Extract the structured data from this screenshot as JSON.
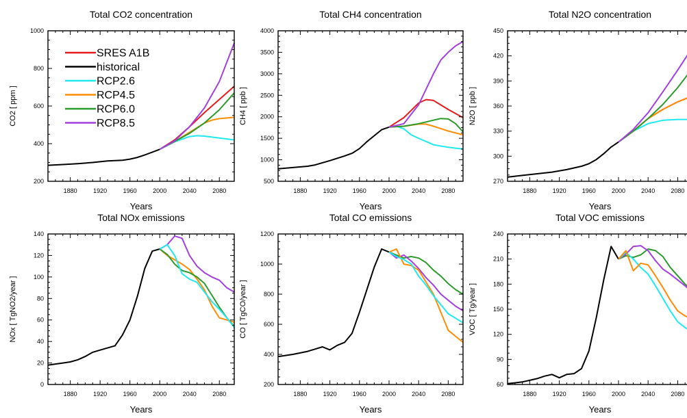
{
  "series_colors": {
    "SRES A1B": "#e41a1c",
    "historical": "#000000",
    "RCP2.6": "#1ee9f0",
    "RCP4.5": "#ff8c00",
    "RCP6.0": "#2a9a2a",
    "RCP8.5": "#a23fe0"
  },
  "legend": [
    "SRES A1B",
    "historical",
    "RCP2.6",
    "RCP4.5",
    "RCP6.0",
    "RCP8.5"
  ],
  "chart_data": [
    {
      "type": "line",
      "title": "Total CO2 concentration",
      "xlabel": "Years",
      "ylabel": "CO2 [ ppm ]",
      "xlim": [
        1850,
        2100
      ],
      "ylim": [
        200,
        1000
      ],
      "xticks": [
        "1880",
        "1920",
        "1960",
        "2000",
        "2040",
        "2080"
      ],
      "yticks": [
        "200",
        "400",
        "600",
        "800",
        "1000"
      ],
      "series": [
        {
          "name": "historical",
          "x": [
            1850,
            1870,
            1890,
            1910,
            1930,
            1950,
            1960,
            1970,
            1980,
            1990,
            2000
          ],
          "y": [
            285,
            289,
            294,
            300,
            308,
            312,
            318,
            327,
            340,
            355,
            370
          ]
        },
        {
          "name": "SRES A1B",
          "x": [
            2000,
            2020,
            2040,
            2060,
            2080,
            2100
          ],
          "y": [
            370,
            420,
            490,
            565,
            635,
            705
          ]
        },
        {
          "name": "RCP2.6",
          "x": [
            2000,
            2020,
            2040,
            2050,
            2060,
            2080,
            2100
          ],
          "y": [
            370,
            410,
            438,
            442,
            440,
            430,
            420
          ]
        },
        {
          "name": "RCP4.5",
          "x": [
            2000,
            2020,
            2040,
            2060,
            2070,
            2080,
            2100
          ],
          "y": [
            370,
            412,
            460,
            510,
            525,
            533,
            540
          ]
        },
        {
          "name": "RCP6.0",
          "x": [
            2000,
            2020,
            2040,
            2060,
            2080,
            2100
          ],
          "y": [
            370,
            412,
            455,
            510,
            580,
            670
          ]
        },
        {
          "name": "RCP8.5",
          "x": [
            2000,
            2020,
            2040,
            2060,
            2080,
            2100
          ],
          "y": [
            370,
            415,
            490,
            590,
            730,
            935
          ]
        }
      ]
    },
    {
      "type": "line",
      "title": "Total CH4 concentration",
      "xlabel": "Years",
      "ylabel": "CH4 [ ppb ]",
      "xlim": [
        1850,
        2100
      ],
      "ylim": [
        500,
        4000
      ],
      "xticks": [
        "1880",
        "1920",
        "1960",
        "2000",
        "2040",
        "2080"
      ],
      "yticks": [
        "500",
        "1000",
        "1500",
        "2000",
        "2500",
        "3000",
        "3500",
        "4000"
      ],
      "series": [
        {
          "name": "historical",
          "x": [
            1850,
            1870,
            1890,
            1900,
            1920,
            1940,
            1950,
            1960,
            1970,
            1980,
            1990,
            2000
          ],
          "y": [
            790,
            820,
            850,
            880,
            980,
            1090,
            1150,
            1260,
            1420,
            1560,
            1700,
            1760
          ]
        },
        {
          "name": "SRES A1B",
          "x": [
            2000,
            2020,
            2030,
            2040,
            2050,
            2060,
            2080,
            2100
          ],
          "y": [
            1760,
            1980,
            2150,
            2320,
            2400,
            2380,
            2170,
            1980
          ]
        },
        {
          "name": "RCP2.6",
          "x": [
            2000,
            2010,
            2020,
            2030,
            2040,
            2060,
            2080,
            2100
          ],
          "y": [
            1760,
            1780,
            1720,
            1580,
            1500,
            1350,
            1290,
            1250
          ]
        },
        {
          "name": "RCP4.5",
          "x": [
            2000,
            2020,
            2040,
            2050,
            2060,
            2080,
            2100
          ],
          "y": [
            1760,
            1780,
            1830,
            1830,
            1780,
            1670,
            1580
          ]
        },
        {
          "name": "RCP6.0",
          "x": [
            2000,
            2020,
            2040,
            2060,
            2070,
            2080,
            2090,
            2100
          ],
          "y": [
            1760,
            1780,
            1840,
            1920,
            1960,
            1950,
            1840,
            1650
          ]
        },
        {
          "name": "RCP8.5",
          "x": [
            2000,
            2020,
            2040,
            2060,
            2070,
            2080,
            2090,
            2100
          ],
          "y": [
            1760,
            1840,
            2280,
            3000,
            3320,
            3500,
            3650,
            3750
          ]
        }
      ]
    },
    {
      "type": "line",
      "title": "Total N2O concentration",
      "xlabel": "Years",
      "ylabel": "N2O [ ppb ]",
      "xlim": [
        1850,
        2100
      ],
      "ylim": [
        270,
        450
      ],
      "xticks": [
        "1880",
        "1920",
        "1960",
        "2000",
        "2040",
        "2080"
      ],
      "yticks": [
        "270",
        "300",
        "330",
        "360",
        "390",
        "420",
        "450"
      ],
      "series": [
        {
          "name": "historical",
          "x": [
            1850,
            1870,
            1890,
            1910,
            1930,
            1950,
            1960,
            1970,
            1980,
            1990,
            2000
          ],
          "y": [
            275,
            277,
            279,
            281,
            284,
            288,
            291,
            296,
            303,
            311,
            317
          ]
        },
        {
          "name": "SRES A1B",
          "x": [
            2000,
            2020,
            2040,
            2060,
            2080,
            2100
          ],
          "y": [
            317,
            330,
            345,
            356,
            365,
            372
          ]
        },
        {
          "name": "RCP2.6",
          "x": [
            2000,
            2020,
            2040,
            2060,
            2080,
            2100
          ],
          "y": [
            317,
            330,
            339,
            343,
            344,
            344
          ]
        },
        {
          "name": "RCP4.5",
          "x": [
            2000,
            2020,
            2040,
            2060,
            2080,
            2100
          ],
          "y": [
            317,
            330,
            345,
            356,
            365,
            372
          ]
        },
        {
          "name": "RCP6.0",
          "x": [
            2000,
            2020,
            2040,
            2060,
            2080,
            2100
          ],
          "y": [
            317,
            330,
            345,
            362,
            382,
            405
          ]
        },
        {
          "name": "RCP8.5",
          "x": [
            2000,
            2020,
            2040,
            2060,
            2080,
            2100
          ],
          "y": [
            317,
            332,
            352,
            377,
            403,
            430
          ]
        }
      ]
    },
    {
      "type": "line",
      "title": "Total NOx emissions",
      "xlabel": "Years",
      "ylabel": "NOx [ TgNO2/year ]",
      "xlim": [
        1850,
        2100
      ],
      "ylim": [
        0,
        140
      ],
      "xticks": [
        "1880",
        "1920",
        "1960",
        "2000",
        "2040",
        "2080"
      ],
      "yticks": [
        "0",
        "20",
        "40",
        "60",
        "80",
        "100",
        "120",
        "140"
      ],
      "series": [
        {
          "name": "historical",
          "x": [
            1850,
            1860,
            1870,
            1880,
            1890,
            1900,
            1910,
            1920,
            1930,
            1940,
            1950,
            1960,
            1970,
            1980,
            1990,
            2000
          ],
          "y": [
            18,
            19,
            20,
            21,
            23,
            26,
            30,
            32,
            34,
            36,
            46,
            60,
            82,
            108,
            124,
            126
          ]
        },
        {
          "name": "RCP4.5",
          "x": [
            2000,
            2010,
            2020,
            2030,
            2040,
            2050,
            2060,
            2070,
            2080,
            2090,
            2100
          ],
          "y": [
            126,
            120,
            116,
            112,
            107,
            98,
            88,
            73,
            62,
            60,
            58
          ]
        },
        {
          "name": "RCP6.0",
          "x": [
            2000,
            2010,
            2020,
            2030,
            2040,
            2050,
            2060,
            2070,
            2080,
            2090,
            2100
          ],
          "y": [
            126,
            121,
            112,
            106,
            104,
            100,
            94,
            83,
            72,
            62,
            54
          ]
        },
        {
          "name": "RCP8.5",
          "x": [
            2000,
            2010,
            2020,
            2030,
            2040,
            2050,
            2060,
            2070,
            2080,
            2090,
            2100
          ],
          "y": [
            126,
            130,
            138,
            136,
            120,
            110,
            104,
            100,
            97,
            90,
            86
          ]
        },
        {
          "name": "RCP2.6",
          "x": [
            2000,
            2010,
            2020,
            2030,
            2040,
            2050,
            2060,
            2070,
            2080,
            2090,
            2100
          ],
          "y": [
            126,
            130,
            120,
            103,
            98,
            95,
            86,
            77,
            70,
            62,
            53
          ]
        }
      ]
    },
    {
      "type": "line",
      "title": "Total CO emissions",
      "xlabel": "Years",
      "ylabel": "CO [ TgCO/year ]",
      "xlim": [
        1850,
        2100
      ],
      "ylim": [
        200,
        1200
      ],
      "xticks": [
        "1880",
        "1920",
        "1960",
        "2000",
        "2040",
        "2080"
      ],
      "yticks": [
        "200",
        "400",
        "600",
        "800",
        "1000",
        "1200"
      ],
      "series": [
        {
          "name": "historical",
          "x": [
            1850,
            1870,
            1890,
            1910,
            1920,
            1930,
            1940,
            1950,
            1960,
            1970,
            1980,
            1990,
            2000
          ],
          "y": [
            385,
            400,
            420,
            450,
            430,
            460,
            480,
            540,
            680,
            830,
            980,
            1100,
            1080
          ]
        },
        {
          "name": "RCP6.0",
          "x": [
            2000,
            2010,
            2020,
            2030,
            2040,
            2050,
            2060,
            2070,
            2080,
            2090,
            2100
          ],
          "y": [
            1080,
            1060,
            1040,
            1050,
            1040,
            1010,
            960,
            920,
            870,
            830,
            800
          ]
        },
        {
          "name": "RCP8.5",
          "x": [
            2000,
            2010,
            2020,
            2030,
            2040,
            2050,
            2060,
            2070,
            2080,
            2090,
            2100
          ],
          "y": [
            1080,
            1040,
            1060,
            1020,
            970,
            910,
            860,
            800,
            760,
            720,
            690
          ]
        },
        {
          "name": "RCP4.5",
          "x": [
            2000,
            2010,
            2020,
            2030,
            2040,
            2050,
            2060,
            2070,
            2080,
            2090,
            2100
          ],
          "y": [
            1080,
            1100,
            1000,
            990,
            960,
            880,
            800,
            680,
            560,
            520,
            480
          ]
        },
        {
          "name": "RCP2.6",
          "x": [
            2000,
            2010,
            2020,
            2030,
            2040,
            2050,
            2060,
            2070,
            2080,
            2090,
            2100
          ],
          "y": [
            1080,
            1050,
            1030,
            1000,
            920,
            860,
            790,
            730,
            670,
            640,
            610
          ]
        }
      ]
    },
    {
      "type": "line",
      "title": "Total VOC emissions",
      "xlabel": "Years",
      "ylabel": "VOC [ Tg/year ]",
      "xlim": [
        1850,
        2100
      ],
      "ylim": [
        60,
        240
      ],
      "xticks": [
        "1880",
        "1920",
        "1960",
        "2000",
        "2040",
        "2080"
      ],
      "yticks": [
        "60",
        "90",
        "120",
        "150",
        "180",
        "210",
        "240"
      ],
      "series": [
        {
          "name": "historical",
          "x": [
            1850,
            1860,
            1870,
            1880,
            1890,
            1900,
            1910,
            1920,
            1930,
            1940,
            1950,
            1960,
            1970,
            1980,
            1990,
            2000
          ],
          "y": [
            61,
            62,
            63,
            65,
            67,
            70,
            72,
            68,
            72,
            73,
            79,
            100,
            140,
            185,
            225,
            210
          ]
        },
        {
          "name": "RCP6.0",
          "x": [
            2000,
            2010,
            2020,
            2030,
            2040,
            2050,
            2060,
            2070,
            2080,
            2090,
            2100
          ],
          "y": [
            210,
            214,
            212,
            215,
            222,
            220,
            213,
            200,
            190,
            180,
            172
          ]
        },
        {
          "name": "RCP8.5",
          "x": [
            2000,
            2010,
            2020,
            2030,
            2040,
            2050,
            2060,
            2070,
            2080,
            2090,
            2100
          ],
          "y": [
            210,
            216,
            225,
            226,
            220,
            208,
            198,
            192,
            185,
            178,
            170
          ]
        },
        {
          "name": "RCP2.6",
          "x": [
            2000,
            2010,
            2020,
            2030,
            2040,
            2050,
            2060,
            2070,
            2080,
            2090,
            2100
          ],
          "y": [
            210,
            218,
            210,
            200,
            192,
            178,
            163,
            148,
            135,
            128,
            123
          ]
        },
        {
          "name": "RCP4.5",
          "x": [
            2000,
            2010,
            2020,
            2030,
            2040,
            2050,
            2060,
            2070,
            2080,
            2090,
            2100
          ],
          "y": [
            210,
            220,
            196,
            205,
            203,
            190,
            176,
            161,
            148,
            142,
            138
          ]
        }
      ]
    }
  ]
}
